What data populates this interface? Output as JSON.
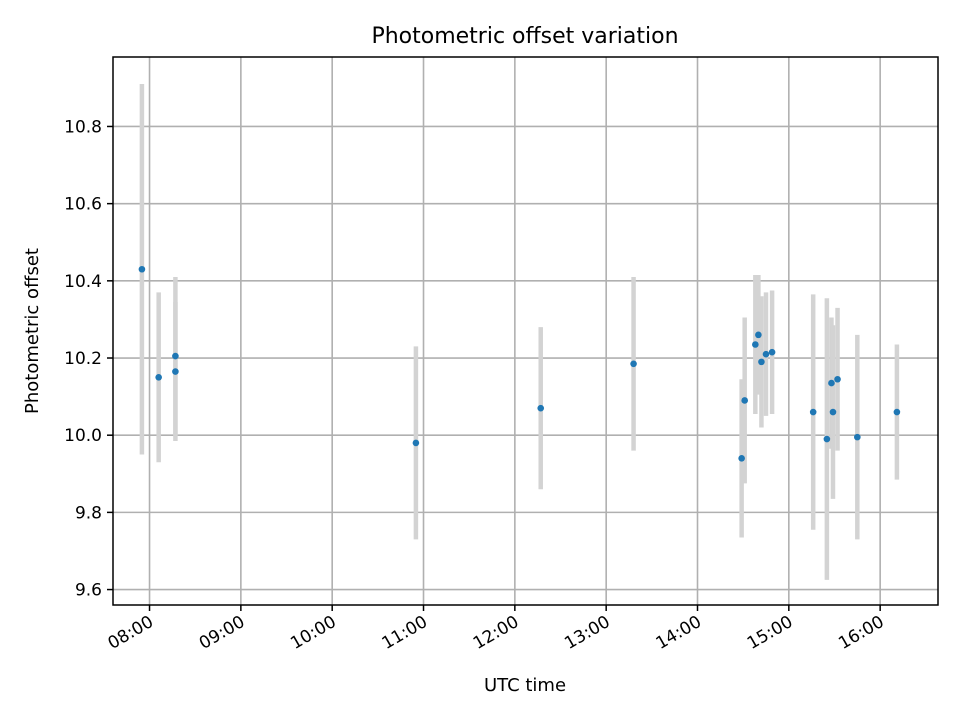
{
  "chart_data": {
    "type": "scatter",
    "title": "Photometric offset variation",
    "xlabel": "UTC time",
    "ylabel": "Photometric offset",
    "x_axis": {
      "kind": "time",
      "range": [
        "07:36",
        "16:38"
      ],
      "ticks": [
        "08:00",
        "09:00",
        "10:00",
        "11:00",
        "12:00",
        "13:00",
        "14:00",
        "15:00",
        "16:00"
      ]
    },
    "y_axis": {
      "range": [
        9.56,
        10.98
      ],
      "ticks": [
        9.6,
        9.8,
        10.0,
        10.2,
        10.4,
        10.6,
        10.8
      ],
      "tick_labels": [
        "9.6",
        "9.8",
        "10.0",
        "10.2",
        "10.4",
        "10.6",
        "10.8"
      ]
    },
    "grid": true,
    "marker_color": "#1f77b4",
    "errorbar_color": "#d3d3d3",
    "points": [
      {
        "t": "07:55",
        "y": 10.43,
        "err": 0.48
      },
      {
        "t": "08:06",
        "y": 10.15,
        "err": 0.22
      },
      {
        "t": "08:17",
        "y": 10.205,
        "err": 0.205
      },
      {
        "t": "08:17",
        "y": 10.165,
        "err": 0.18
      },
      {
        "t": "10:55",
        "y": 9.98,
        "err": 0.25
      },
      {
        "t": "12:17",
        "y": 10.07,
        "err": 0.21
      },
      {
        "t": "13:18",
        "y": 10.185,
        "err": 0.225
      },
      {
        "t": "14:29",
        "y": 9.94,
        "err": 0.205
      },
      {
        "t": "14:31",
        "y": 10.09,
        "err": 0.215
      },
      {
        "t": "14:38",
        "y": 10.235,
        "err": 0.18
      },
      {
        "t": "14:40",
        "y": 10.26,
        "err": 0.155
      },
      {
        "t": "14:42",
        "y": 10.19,
        "err": 0.17
      },
      {
        "t": "14:45",
        "y": 10.21,
        "err": 0.16
      },
      {
        "t": "14:49",
        "y": 10.215,
        "err": 0.16
      },
      {
        "t": "15:16",
        "y": 10.06,
        "err": 0.305
      },
      {
        "t": "15:25",
        "y": 9.99,
        "err": 0.365
      },
      {
        "t": "15:28",
        "y": 10.135,
        "err": 0.17
      },
      {
        "t": "15:29",
        "y": 10.06,
        "err": 0.225
      },
      {
        "t": "15:32",
        "y": 10.145,
        "err": 0.185
      },
      {
        "t": "15:45",
        "y": 9.995,
        "err": 0.265
      },
      {
        "t": "16:11",
        "y": 10.06,
        "err": 0.175
      }
    ]
  }
}
